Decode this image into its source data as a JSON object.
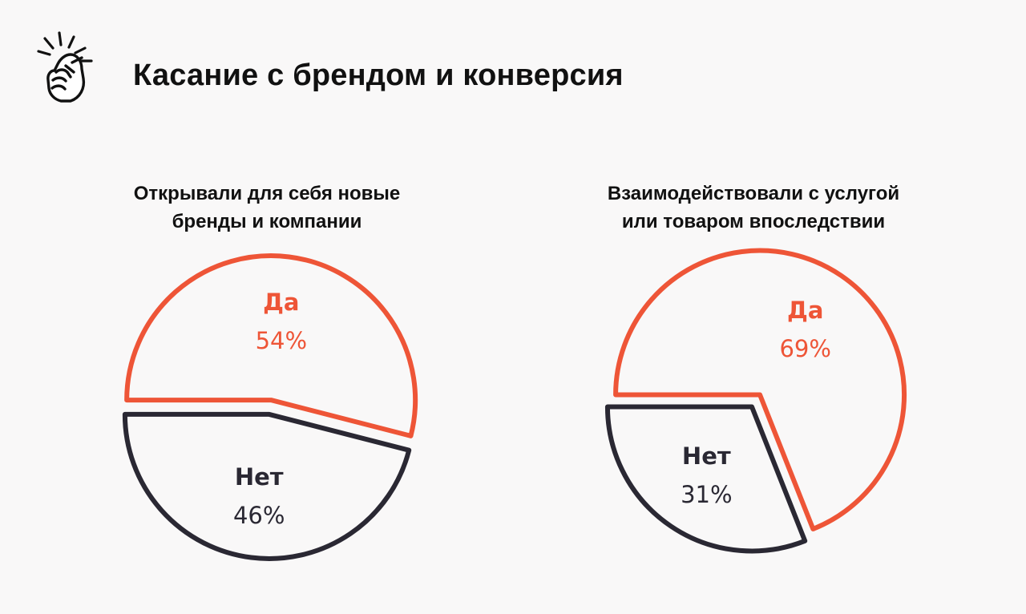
{
  "title": "Касание с брендом и конверсия",
  "colors": {
    "accent": "#ee5537",
    "dark": "#2a2833",
    "background": "#f9f8f8",
    "text": "#111111"
  },
  "logo": {
    "icon": "snapping-fingers-hand-icon"
  },
  "chart_data": [
    {
      "type": "pie",
      "title_lines": [
        "Открывали для себя новые",
        "бренды и компании"
      ],
      "categories": [
        "Да",
        "Нет"
      ],
      "values": [
        54,
        46
      ],
      "value_labels": [
        "54%",
        "46%"
      ],
      "colors": [
        "#ee5537",
        "#2a2833"
      ],
      "legend": "none"
    },
    {
      "type": "pie",
      "title_lines": [
        "Взаимодействовали с услугой",
        "или товаром впоследствии"
      ],
      "categories": [
        "Да",
        "Нет"
      ],
      "values": [
        69,
        31
      ],
      "value_labels": [
        "69%",
        "31%"
      ],
      "colors": [
        "#ee5537",
        "#2a2833"
      ],
      "legend": "none"
    }
  ]
}
